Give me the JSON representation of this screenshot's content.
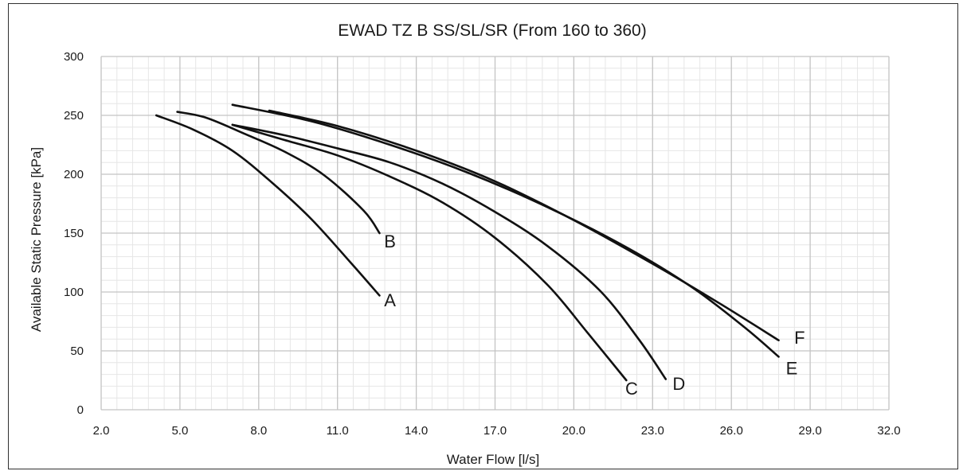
{
  "chart_data": {
    "type": "line",
    "title": "EWAD TZ B SS/SL/SR  (From 160 to 360)",
    "xlabel": "Water Flow [l/s]",
    "ylabel": "Available Static Pressure  [kPa]",
    "xlim": [
      2.0,
      32.0
    ],
    "ylim": [
      0,
      300
    ],
    "x_ticks": [
      2.0,
      5.0,
      8.0,
      11.0,
      14.0,
      17.0,
      20.0,
      23.0,
      26.0,
      29.0,
      32.0
    ],
    "x_tick_labels": [
      "2.0",
      "5.0",
      "8.0",
      "11.0",
      "14.0",
      "17.0",
      "20.0",
      "23.0",
      "26.0",
      "29.0",
      "32.0"
    ],
    "y_ticks": [
      0,
      50,
      100,
      150,
      200,
      250,
      300
    ],
    "y_tick_labels": [
      "0",
      "50",
      "100",
      "150",
      "200",
      "250",
      "300"
    ],
    "grid": true,
    "minor_grid": true,
    "legend": "none",
    "line_color": "#111111",
    "series": [
      {
        "name": "A",
        "label_at": [
          13.0,
          88
        ],
        "x": [
          4.1,
          5.5,
          7.0,
          8.5,
          10.0,
          11.5,
          12.6
        ],
        "y": [
          250,
          238,
          220,
          193,
          162,
          125,
          97
        ]
      },
      {
        "name": "B",
        "label_at": [
          13.0,
          138
        ],
        "x": [
          4.9,
          6.0,
          7.5,
          9.0,
          10.5,
          12.0,
          12.6
        ],
        "y": [
          253,
          248,
          234,
          219,
          199,
          169,
          150
        ]
      },
      {
        "name": "C",
        "label_at": [
          22.2,
          13
        ],
        "x": [
          7.0,
          9.0,
          11.0,
          13.0,
          15.0,
          17.0,
          19.0,
          20.5,
          22.0
        ],
        "y": [
          242,
          229,
          216,
          198,
          176,
          146,
          106,
          66,
          25
        ]
      },
      {
        "name": "D",
        "label_at": [
          24.0,
          17
        ],
        "x": [
          7.0,
          9.0,
          11.0,
          13.0,
          15.0,
          17.0,
          19.0,
          21.0,
          22.5,
          23.5
        ],
        "y": [
          242,
          233,
          222,
          210,
          192,
          168,
          139,
          101,
          59,
          26
        ]
      },
      {
        "name": "E",
        "label_at": [
          28.3,
          30
        ],
        "x": [
          7.0,
          10.0,
          13.0,
          16.0,
          19.0,
          22.0,
          24.5,
          26.5,
          27.8
        ],
        "y": [
          259,
          245,
          225,
          201,
          172,
          138,
          104,
          70,
          45
        ]
      },
      {
        "name": "F",
        "label_at": [
          28.6,
          56
        ],
        "x": [
          8.4,
          11.0,
          14.0,
          17.0,
          20.0,
          23.0,
          25.5,
          27.8
        ],
        "y": [
          254,
          241,
          220,
          194,
          161,
          124,
          91,
          59
        ]
      }
    ]
  }
}
